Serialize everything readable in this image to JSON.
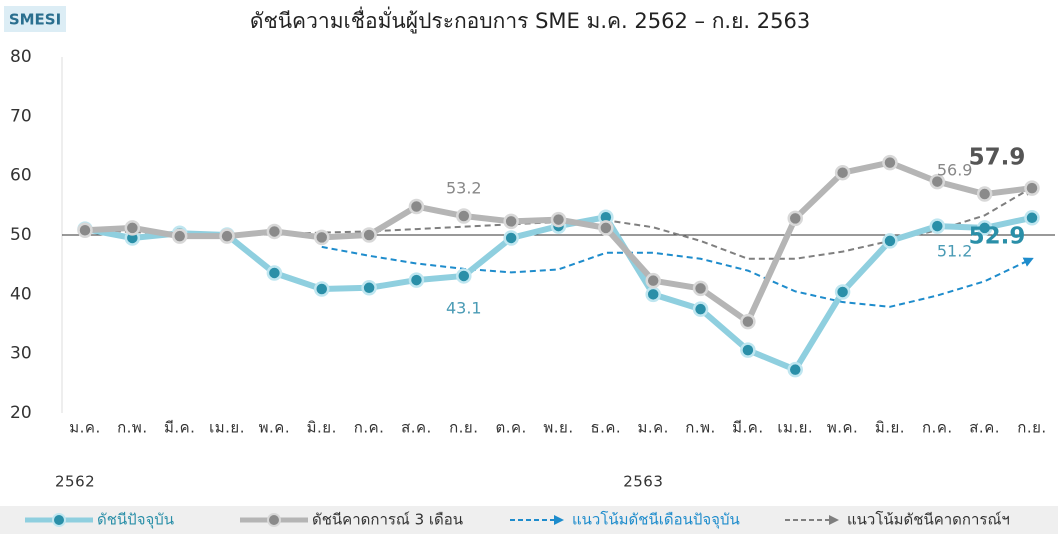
{
  "chart_data": {
    "type": "line",
    "badge": "SMESI",
    "title": "ดัชนีความเชื่อมั่นผู้ประกอบการ SME ม.ค. 2562 – ก.ย. 2563",
    "categories": [
      "ม.ค.",
      "ก.พ.",
      "มี.ค.",
      "เม.ย.",
      "พ.ค.",
      "มิ.ย.",
      "ก.ค.",
      "ส.ค.",
      "ก.ย.",
      "ต.ค.",
      "พ.ย.",
      "ธ.ค.",
      "ม.ค.",
      "ก.พ.",
      "มี.ค.",
      "เม.ย.",
      "พ.ค.",
      "มิ.ย.",
      "ก.ค.",
      "ส.ค.",
      "ก.ย."
    ],
    "year_labels": [
      "2562",
      null,
      null,
      null,
      null,
      null,
      null,
      null,
      null,
      null,
      null,
      null,
      "2563",
      null,
      null,
      null,
      null,
      null,
      null,
      null,
      null
    ],
    "ylim": [
      20,
      80
    ],
    "yticks": [
      20,
      30,
      40,
      50,
      60,
      70,
      80
    ],
    "reference_line": 50,
    "series": [
      {
        "name": "ดัชนีปัจจุบัน",
        "color": "#8fcfdf",
        "marker_color": "#2a8fa8",
        "dashed": false,
        "values": [
          51.0,
          49.5,
          50.3,
          50.0,
          43.6,
          40.9,
          41.1,
          42.4,
          43.1,
          49.5,
          51.5,
          53.0,
          40.0,
          37.5,
          30.6,
          27.3,
          40.4,
          49.0,
          51.5,
          51.2,
          52.9
        ],
        "value_labels": [
          null,
          null,
          null,
          null,
          null,
          null,
          null,
          null,
          "43.1",
          null,
          null,
          null,
          null,
          null,
          null,
          null,
          null,
          null,
          null,
          "51.2",
          "52.9"
        ]
      },
      {
        "name": "ดัชนีคาดการณ์ 3 เดือน",
        "color": "#b5b5b5",
        "marker_color": "#8a8a8a",
        "dashed": false,
        "values": [
          50.8,
          51.2,
          49.8,
          49.8,
          50.6,
          49.6,
          50.0,
          54.8,
          53.2,
          52.3,
          52.6,
          51.2,
          42.3,
          41.0,
          35.4,
          52.8,
          60.5,
          62.2,
          59.0,
          56.9,
          57.9
        ],
        "value_labels": [
          null,
          null,
          null,
          null,
          null,
          null,
          null,
          null,
          "53.2",
          null,
          null,
          null,
          null,
          null,
          null,
          null,
          null,
          null,
          null,
          "56.9",
          "57.9"
        ]
      },
      {
        "name": "แนวโน้มดัชนีเดือนปัจจุบัน",
        "color": "#1e8ccc",
        "dashed": true,
        "values": [
          null,
          null,
          null,
          null,
          null,
          48.0,
          46.5,
          45.2,
          44.3,
          43.7,
          44.2,
          47.0,
          47.0,
          46.0,
          44.0,
          40.5,
          38.7,
          37.9,
          39.8,
          42.2,
          46.0
        ]
      },
      {
        "name": "แนวโน้มดัชนีคาดการณ์ฯ",
        "color": "#7f7f7f",
        "dashed": true,
        "values": [
          51.0,
          50.5,
          50.2,
          50.0,
          50.1,
          50.4,
          50.6,
          51.0,
          51.4,
          51.8,
          52.2,
          52.5,
          51.3,
          49.0,
          46.0,
          46.0,
          47.2,
          49.0,
          50.8,
          53.3,
          58.0
        ]
      }
    ]
  }
}
